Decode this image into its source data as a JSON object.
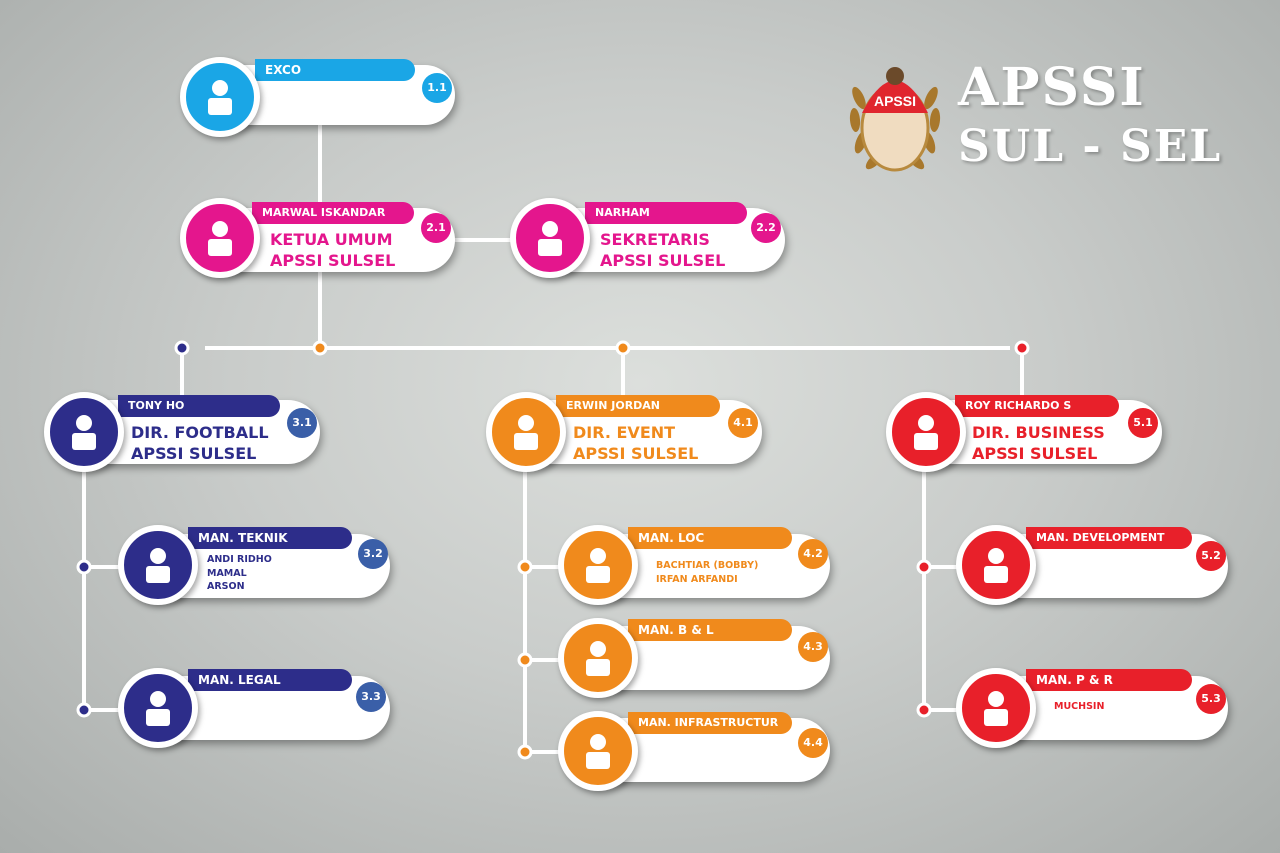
{
  "brand": {
    "line1": "APSSI",
    "line2": "SUL - SEL",
    "logo_text": "APSSI"
  },
  "colors": {
    "exco": "#1aa6e6",
    "pink": "#e4168d",
    "navy": "#2d2d8a",
    "orange": "#f08a1c",
    "red": "#e8202a"
  },
  "nodes": {
    "exco": {
      "tag": "EXCO",
      "badge": "1.1"
    },
    "ketua": {
      "tag": "MARWAL ISKANDAR",
      "title1": "KETUA UMUM",
      "title2": "APSSI SULSEL",
      "badge": "2.1"
    },
    "sekretaris": {
      "tag": "NARHAM",
      "title1": "SEKRETARIS",
      "title2": "APSSI SULSEL",
      "badge": "2.2"
    },
    "football": {
      "tag": "TONY HO",
      "title1": "DIR. FOOTBALL",
      "title2": "APSSI SULSEL",
      "badge": "3.1"
    },
    "event": {
      "tag": "ERWIN JORDAN",
      "title1": "DIR. EVENT",
      "title2": "APSSI SULSEL",
      "badge": "4.1"
    },
    "business": {
      "tag": "ROY RICHARDO S",
      "title1": "DIR. BUSINESS",
      "title2": "APSSI SULSEL",
      "badge": "5.1"
    },
    "teknik": {
      "tag": "MAN. TEKNIK",
      "members": [
        "ANDI RIDHO",
        "MAMAL",
        "ARSON"
      ],
      "badge": "3.2"
    },
    "legal": {
      "tag": "MAN. LEGAL",
      "badge": "3.3"
    },
    "loc": {
      "tag": "MAN. LOC",
      "members": [
        "BACHTIAR (BOBBY)",
        "IRFAN ARFANDI"
      ],
      "badge": "4.2"
    },
    "bl": {
      "tag": "MAN. B & L",
      "badge": "4.3"
    },
    "infra": {
      "tag": "MAN. INFRASTRUCTUR",
      "badge": "4.4"
    },
    "development": {
      "tag": "MAN. DEVELOPMENT",
      "badge": "5.2"
    },
    "pr": {
      "tag": "MAN. P & R",
      "members": [
        "MUCHSIN"
      ],
      "badge": "5.3"
    }
  }
}
